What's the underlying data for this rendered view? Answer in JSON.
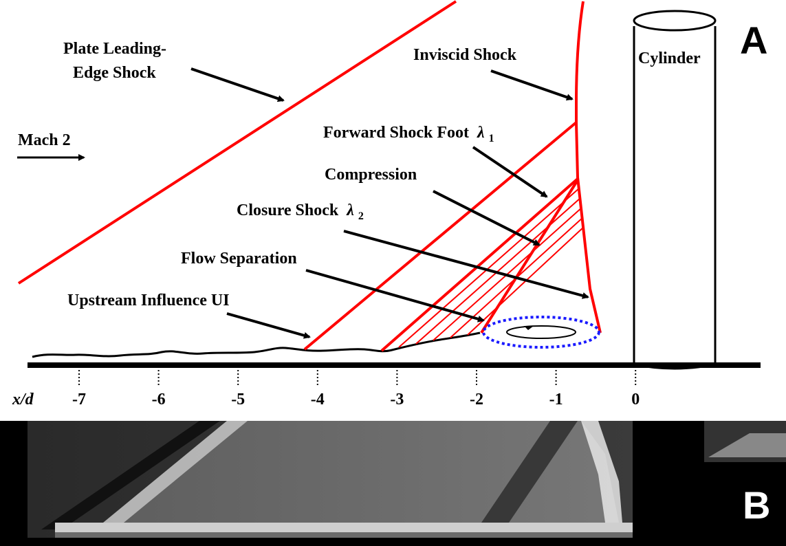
{
  "panel_a": {
    "letter": "A",
    "labels": {
      "plate_leading_edge_shock_line1": "Plate Leading-",
      "plate_leading_edge_shock_line2": "Edge Shock",
      "inviscid_shock": "Inviscid Shock",
      "cylinder": "Cylinder",
      "mach": "Mach 2",
      "forward_shock_foot": "Forward Shock Foot",
      "forward_shock_foot_symbol": "λ",
      "forward_shock_foot_sub": "1",
      "compression": "Compression",
      "closure_shock": "Closure Shock",
      "closure_shock_symbol": "λ",
      "closure_shock_sub": "2",
      "flow_separation": "Flow Separation",
      "upstream_influence": "Upstream Influence UI"
    },
    "axis": {
      "label": "x/d",
      "ticks": [
        "-7",
        "-6",
        "-5",
        "-4",
        "-3",
        "-2",
        "-1",
        "0"
      ]
    },
    "colors": {
      "shock": "#ff0000",
      "separation_bubble": "#1a1aff",
      "ink": "#000000"
    }
  },
  "panel_b": {
    "letter": "B",
    "description_color": "#ffffff"
  }
}
